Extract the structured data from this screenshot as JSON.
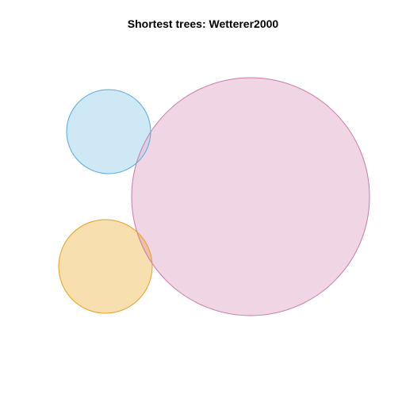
{
  "title": "Shortest trees: Wetterer2000",
  "sets": [
    {
      "id": "blue",
      "fill": "#cfe8f6",
      "stroke": "#56a9db"
    },
    {
      "id": "orange",
      "fill": "#f8dfb0",
      "stroke": "#e3a021"
    },
    {
      "id": "pink",
      "fill": "#f0d6e5",
      "stroke": "#c978a8"
    }
  ],
  "overlaps": [
    {
      "between": [
        "blue",
        "pink"
      ],
      "fill": "#d9d0e6"
    },
    {
      "between": [
        "orange",
        "pink"
      ],
      "fill": "#efc0a8"
    }
  ]
}
